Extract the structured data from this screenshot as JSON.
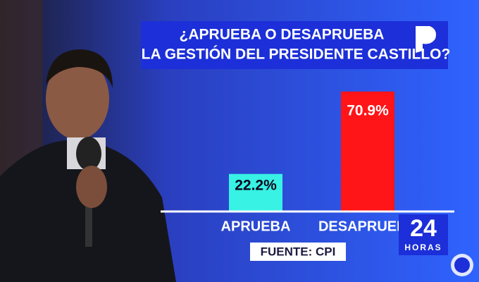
{
  "chart_data": {
    "type": "bar",
    "title_lines": [
      "¿APRUEBA O DESAPRUEBA",
      "LA GESTIÓN DEL PRESIDENTE CASTILLO?"
    ],
    "categories": [
      "APRUEBA",
      "DESAPRUEBA"
    ],
    "values": [
      22.2,
      70.9
    ],
    "value_labels": [
      "22.2%",
      "70.9%"
    ],
    "colors": [
      "#38f2e4",
      "#ff1418"
    ],
    "ylim": [
      0,
      75
    ],
    "source": "FUENTE: CPI"
  },
  "brand": {
    "number": "24",
    "text": "HORAS"
  }
}
